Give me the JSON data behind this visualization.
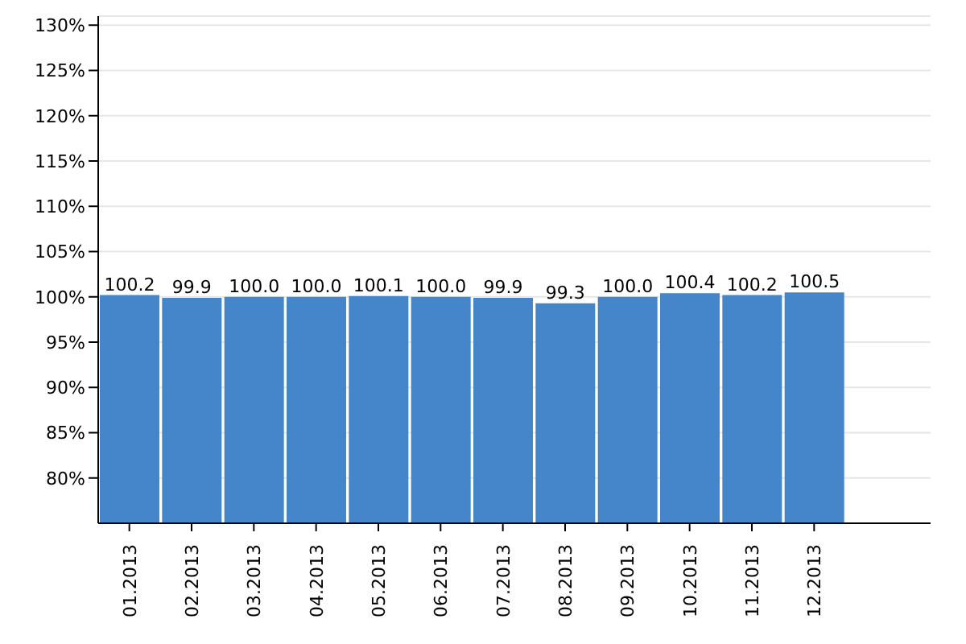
{
  "chart_data": {
    "type": "bar",
    "categories": [
      "01.2013",
      "02.2013",
      "03.2013",
      "04.2013",
      "05.2013",
      "06.2013",
      "07.2013",
      "08.2013",
      "09.2013",
      "10.2013",
      "11.2013",
      "12.2013"
    ],
    "values": [
      100.2,
      99.9,
      100.0,
      100.0,
      100.1,
      100.0,
      99.9,
      99.3,
      100.0,
      100.4,
      100.2,
      100.5
    ],
    "value_labels": [
      "100.2",
      "99.9",
      "100.0",
      "100.0",
      "100.1",
      "100.0",
      "99.9",
      "99.3",
      "100.0",
      "100.4",
      "100.2",
      "100.5"
    ],
    "color": "#4486c9",
    "ylim": [
      75,
      131
    ],
    "yticks": [
      {
        "value": 80,
        "label": "80%"
      },
      {
        "value": 85,
        "label": "85%"
      },
      {
        "value": 90,
        "label": "90%"
      },
      {
        "value": 95,
        "label": "95%"
      },
      {
        "value": 100,
        "label": "100%"
      },
      {
        "value": 105,
        "label": "105%"
      },
      {
        "value": 110,
        "label": "110%"
      },
      {
        "value": 115,
        "label": "115%"
      },
      {
        "value": 120,
        "label": "120%"
      },
      {
        "value": 125,
        "label": "125%"
      },
      {
        "value": 130,
        "label": "130%"
      }
    ],
    "grid": "y"
  }
}
